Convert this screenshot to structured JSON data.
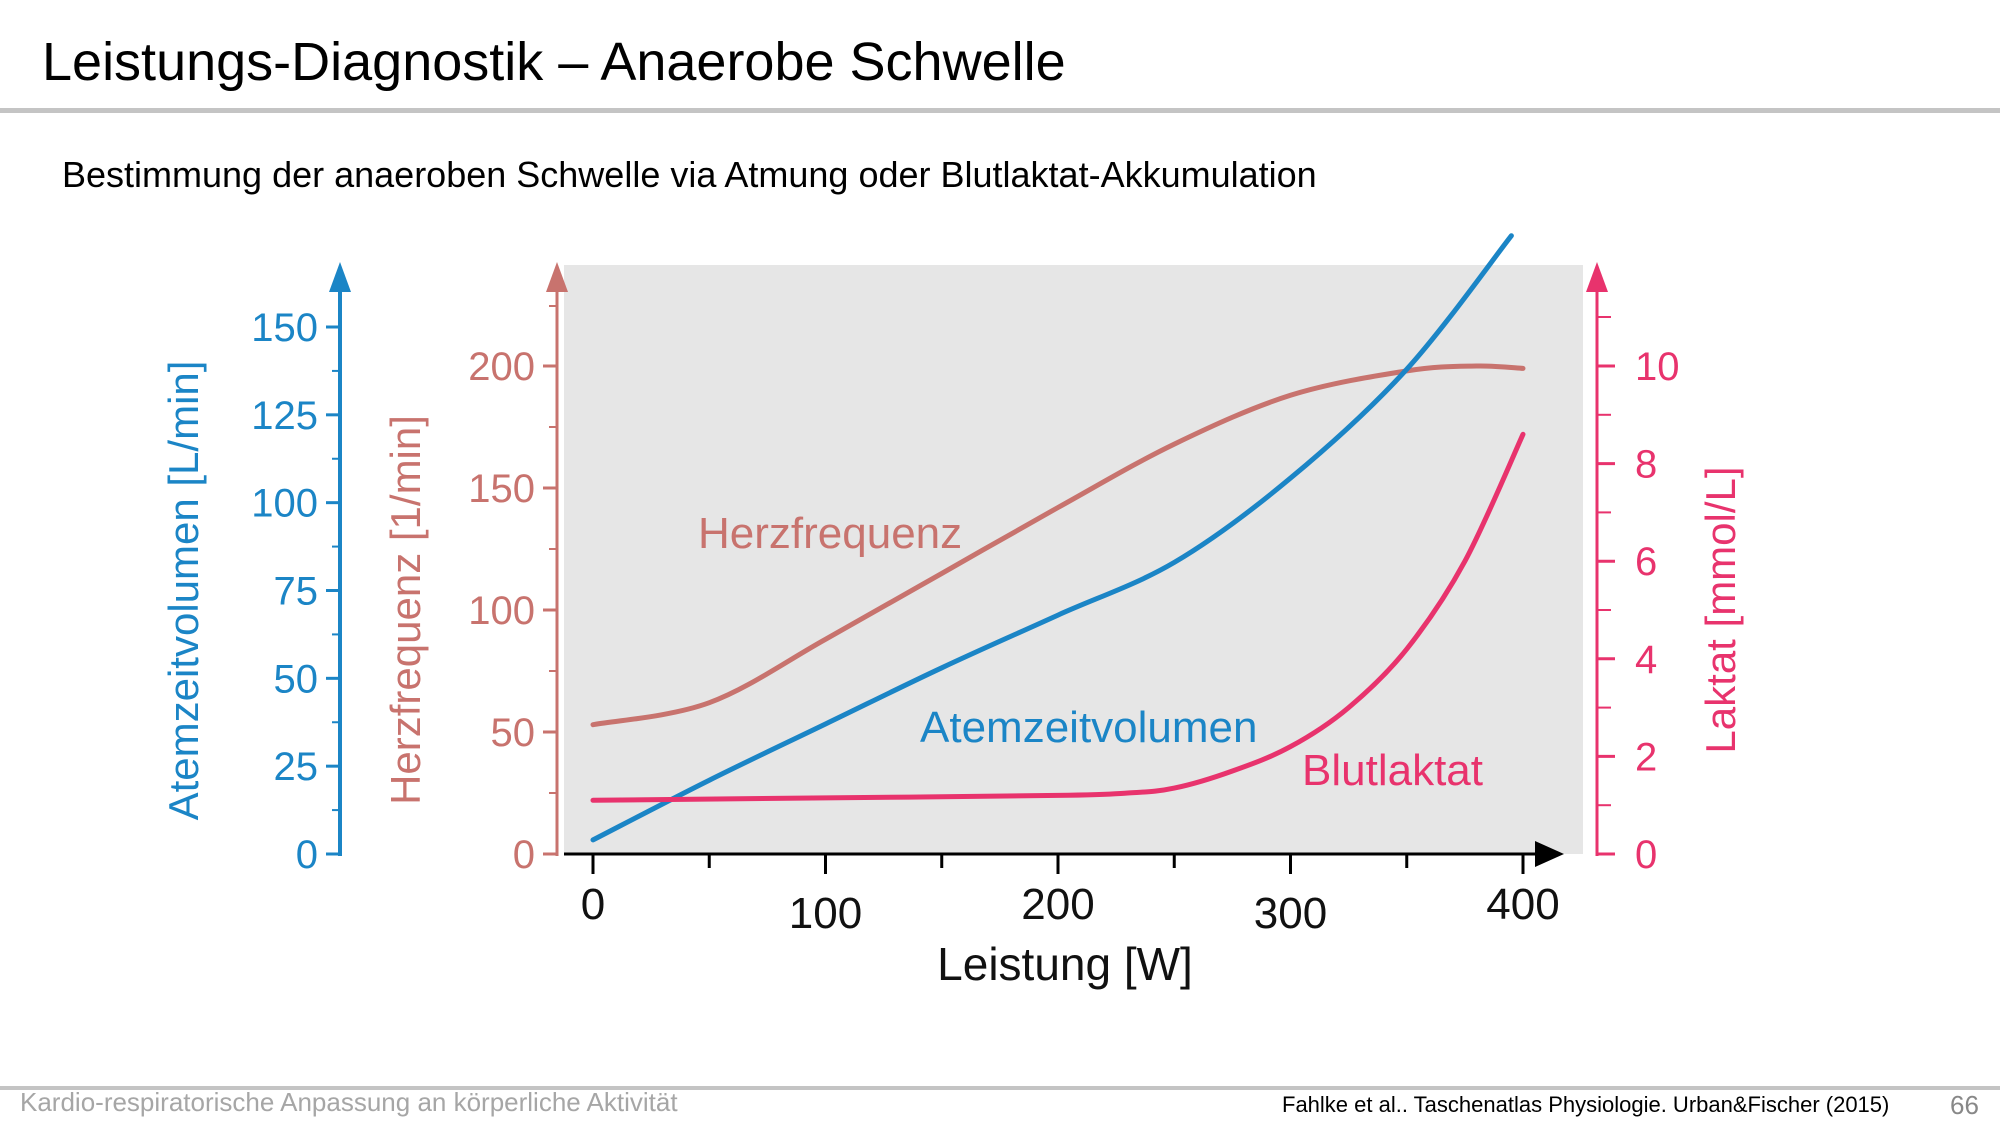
{
  "slide": {
    "title": "Leistungs-Diagnostik – Anaerobe Schwelle",
    "subtitle": "Bestimmung der anaeroben Schwelle via Atmung oder Blutlaktat-Akkumulation",
    "footer_left": "Kardio-respiratorische Anpassung an körperliche Aktivität",
    "source": "Fahlke et al.. Taschenatlas Physiologie. Urban&Fischer (2015)",
    "page_number": "66"
  },
  "chart_data": {
    "type": "line",
    "title": "",
    "xlabel": "Leistung [W]",
    "xlim": [
      0,
      400
    ],
    "x_ticks": [
      0,
      100,
      200,
      300,
      400
    ],
    "background": "#e6e6e6",
    "axes": {
      "ventilation": {
        "label": "Atemzeitvolumen [L/min]",
        "ticks": [
          0,
          25,
          50,
          75,
          100,
          125,
          150
        ],
        "range": [
          0,
          150
        ],
        "color": "#1b85c6"
      },
      "heart_rate": {
        "label": "Herzfrequenz [1/min]",
        "ticks": [
          0,
          50,
          100,
          150,
          200
        ],
        "range": [
          0,
          200
        ],
        "color": "#c8736e"
      },
      "lactate": {
        "label": "Laktat [mmol/L]",
        "ticks": [
          0,
          2,
          4,
          6,
          8,
          10
        ],
        "range": [
          0,
          10
        ],
        "color": "#e8336d"
      }
    },
    "series": [
      {
        "name": "Herzfrequenz",
        "axis": "heart_rate",
        "color": "#c8736e",
        "x": [
          0,
          50,
          100,
          150,
          200,
          250,
          300,
          350,
          380,
          400
        ],
        "y": [
          53,
          62,
          88,
          115,
          142,
          168,
          188,
          198,
          200,
          199
        ]
      },
      {
        "name": "Atemzeitvolumen",
        "axis": "ventilation",
        "color": "#1b85c6",
        "x": [
          0,
          50,
          100,
          150,
          200,
          250,
          300,
          350,
          395
        ],
        "y": [
          4,
          21,
          37,
          53,
          68,
          83,
          107,
          138,
          176
        ]
      },
      {
        "name": "Blutlaktat",
        "axis": "lactate",
        "color": "#e8336d",
        "x": [
          0,
          100,
          200,
          230,
          250,
          275,
          300,
          325,
          350,
          375,
          400
        ],
        "y": [
          1.1,
          1.15,
          1.2,
          1.25,
          1.35,
          1.7,
          2.2,
          3.0,
          4.2,
          6.0,
          8.6
        ]
      }
    ]
  }
}
